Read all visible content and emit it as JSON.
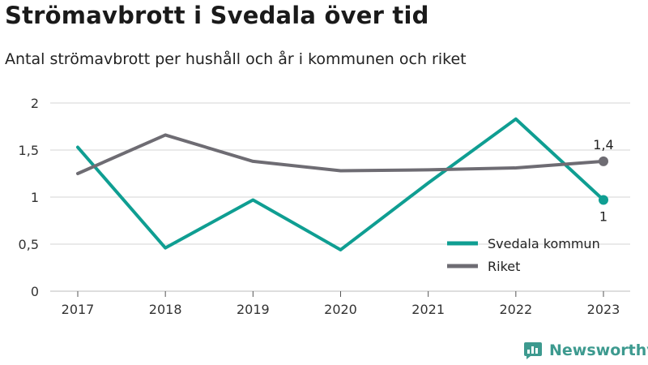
{
  "title": "Strömavbrott i Svedala över tid",
  "subtitle": "Antal strömavbrott per hushåll och år i kommunen och riket",
  "brand": "Newsworthy",
  "colors": {
    "svedala": "#0f9e92",
    "riket": "#6e6c73",
    "grid": "#d6d6d6",
    "brand": "#3d9a8f"
  },
  "chart_data": {
    "type": "line",
    "x": [
      "2017",
      "2018",
      "2019",
      "2020",
      "2021",
      "2022",
      "2023"
    ],
    "y_ticks": [
      "0",
      "0,5",
      "1",
      "1,5",
      "2"
    ],
    "ylim": [
      0,
      2
    ],
    "grid": true,
    "legend_position": "bottom-right",
    "series": [
      {
        "name": "Svedala kommun",
        "color": "#0f9e92",
        "values": [
          1.53,
          0.46,
          0.97,
          0.44,
          1.15,
          1.83,
          0.97
        ],
        "end_label": "1"
      },
      {
        "name": "Riket",
        "color": "#6e6c73",
        "values": [
          1.25,
          1.66,
          1.38,
          1.28,
          1.29,
          1.31,
          1.38
        ],
        "end_label": "1,4"
      }
    ]
  }
}
